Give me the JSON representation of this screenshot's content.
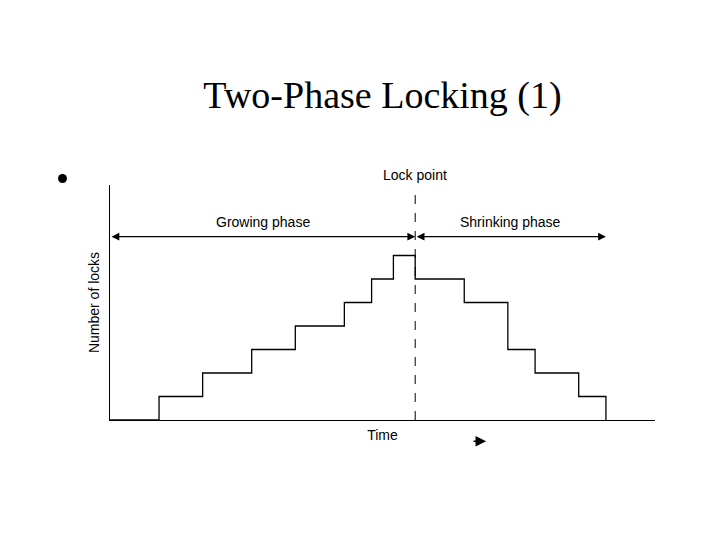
{
  "chart_data": {
    "type": "line",
    "title": "Two-Phase Locking (1)",
    "x_label": "Time",
    "y_label": "Number of locks",
    "x": [
      0,
      9,
      17,
      26,
      34,
      43,
      48,
      52,
      56,
      65,
      73,
      78,
      86,
      91
    ],
    "values": [
      0,
      1,
      2,
      3,
      4,
      5,
      6,
      7,
      6,
      5,
      3,
      2,
      1,
      0
    ],
    "color": "#000000",
    "line_style": "step",
    "xlim": [
      0,
      100
    ],
    "ylim": [
      0,
      10
    ],
    "tick_labels": false,
    "grid": false,
    "annotations": [
      {
        "text": "Lock point",
        "x": 56
      },
      {
        "text": "Growing phase",
        "from": 0,
        "to": 56
      },
      {
        "text": "Shrinking phase",
        "from": 56,
        "to": 91
      }
    ]
  }
}
